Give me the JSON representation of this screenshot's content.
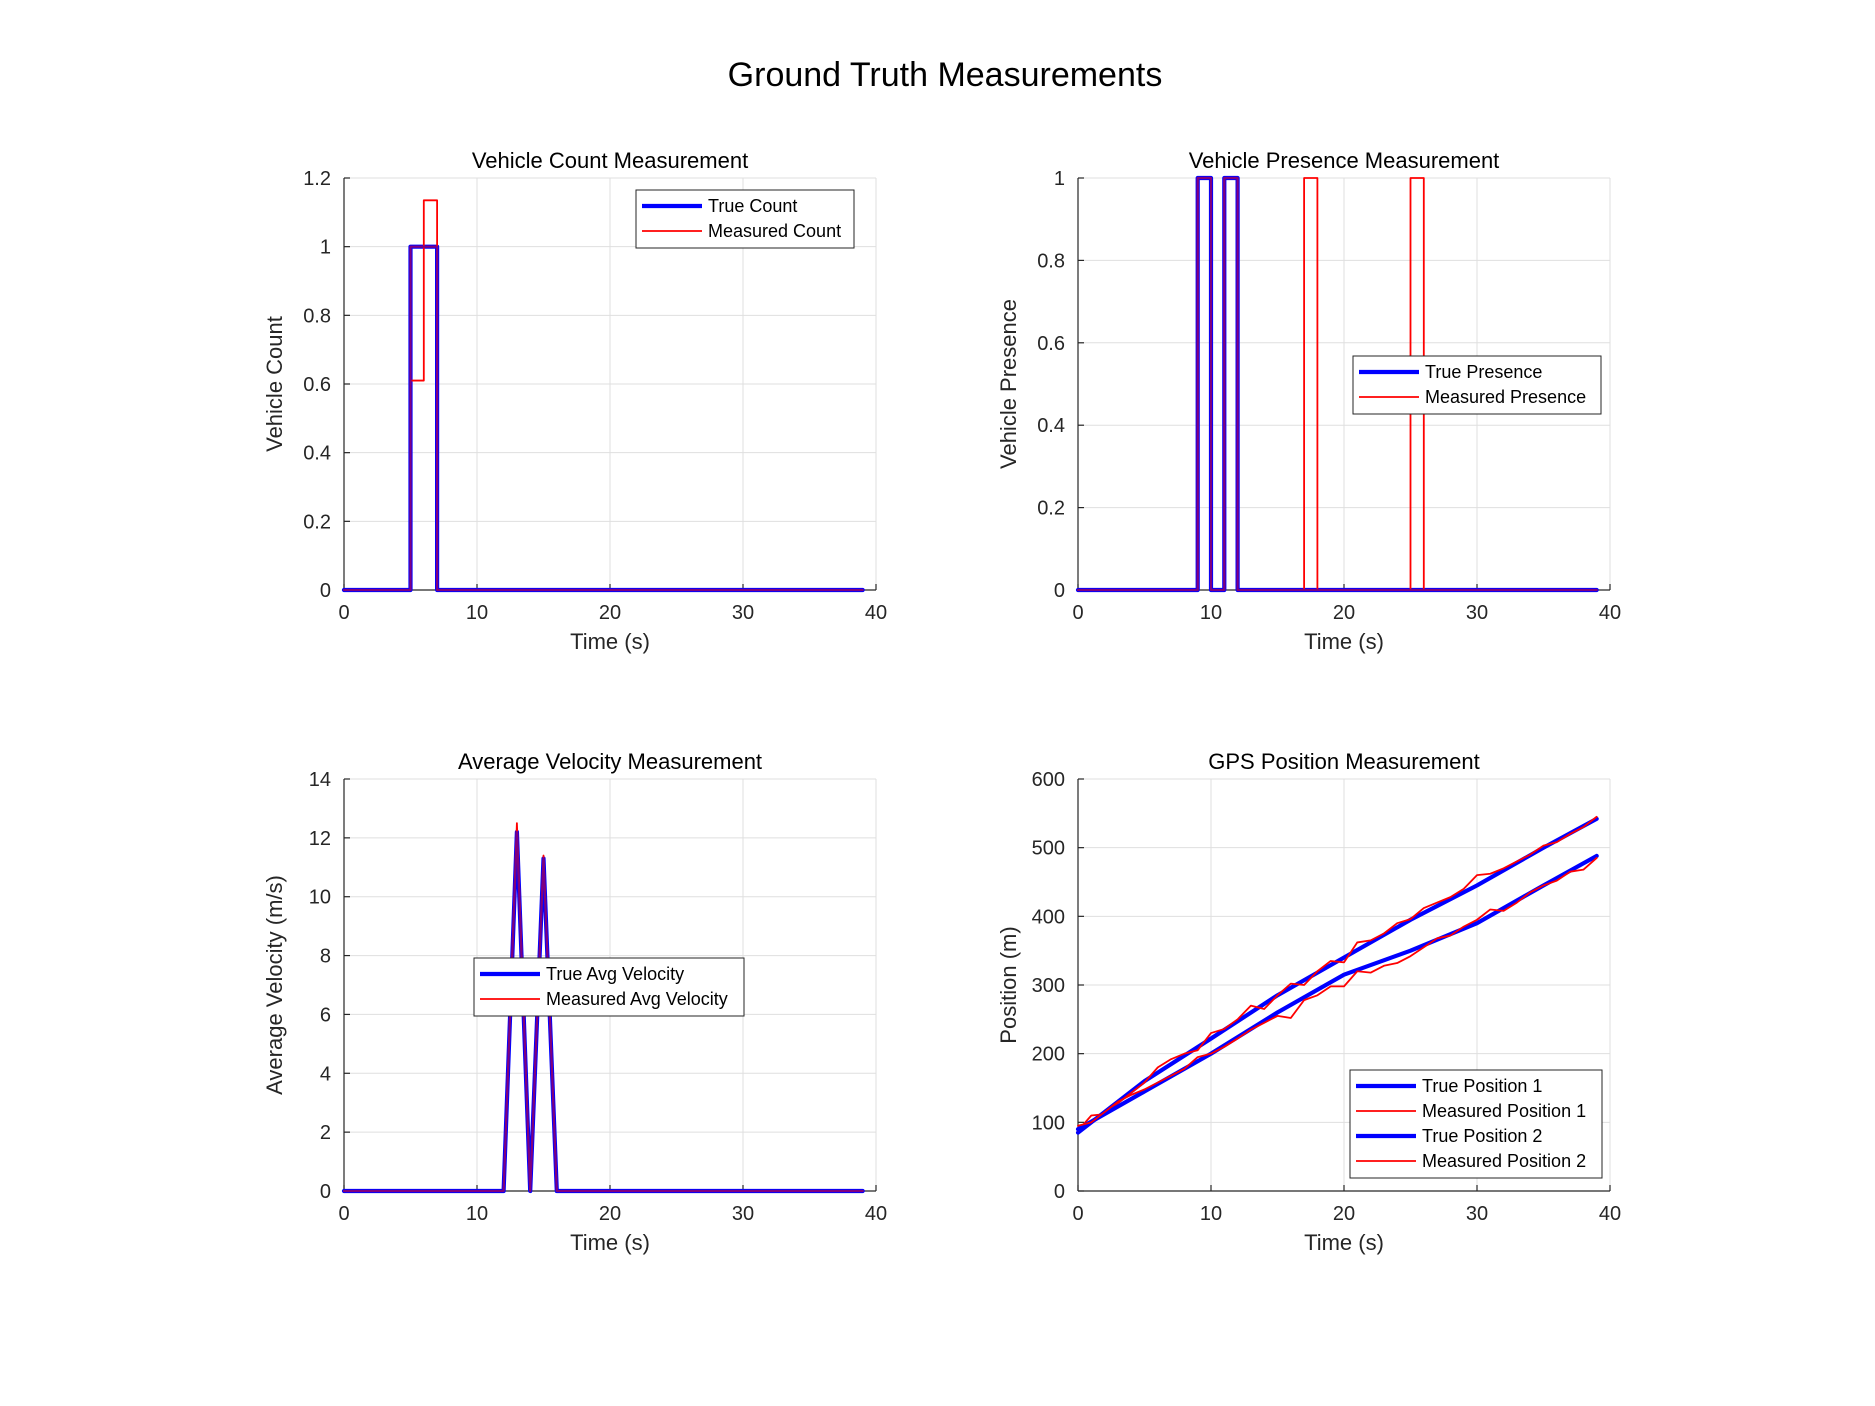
{
  "figure": {
    "title": "Ground Truth Measurements",
    "colors": {
      "true": "#0000ff",
      "measured": "#ff0000",
      "overlap": "#7f007f",
      "grid": "#dfdfdf",
      "axis": "#262626"
    }
  },
  "chart_data": [
    {
      "type": "line",
      "title": "Vehicle Count Measurement",
      "xlabel": "Time (s)",
      "ylabel": "Vehicle Count",
      "xlim": [
        0,
        40
      ],
      "ylim": [
        0,
        1.2
      ],
      "xticks": [
        0,
        10,
        20,
        30,
        40
      ],
      "yticks": [
        0,
        0.2,
        0.4,
        0.6,
        0.8,
        1,
        1.2
      ],
      "xtick_labels": [
        "0",
        "10",
        "20",
        "30",
        "40"
      ],
      "ytick_labels": [
        "0",
        "0.2",
        "0.4",
        "0.6",
        "0.8",
        "1",
        "1.2"
      ],
      "grid": true,
      "legend": "top-right",
      "series": [
        {
          "name": "True Count",
          "role": "true",
          "x": [
            0,
            5,
            5,
            7,
            7,
            39
          ],
          "y": [
            0,
            0,
            1,
            1,
            0,
            0
          ]
        },
        {
          "name": "Measured Count",
          "role": "measured",
          "x": [
            0,
            5,
            5,
            6,
            6,
            7,
            7,
            39
          ],
          "y": [
            0,
            0,
            0.61,
            0.61,
            1.135,
            1.135,
            0,
            0
          ]
        }
      ]
    },
    {
      "type": "line",
      "title": "Vehicle Presence Measurement",
      "xlabel": "Time (s)",
      "ylabel": "Vehicle Presence",
      "xlim": [
        0,
        40
      ],
      "ylim": [
        0,
        1
      ],
      "xticks": [
        0,
        10,
        20,
        30,
        40
      ],
      "yticks": [
        0,
        0.2,
        0.4,
        0.6,
        0.8,
        1
      ],
      "xtick_labels": [
        "0",
        "10",
        "20",
        "30",
        "40"
      ],
      "ytick_labels": [
        "0",
        "0.2",
        "0.4",
        "0.6",
        "0.8",
        "1"
      ],
      "grid": true,
      "legend": "center-right",
      "series": [
        {
          "name": "True Presence",
          "role": "true",
          "x": [
            0,
            9,
            9,
            10,
            10,
            11,
            11,
            12,
            12,
            39
          ],
          "y": [
            0,
            0,
            1,
            1,
            0,
            0,
            1,
            1,
            0,
            0
          ]
        },
        {
          "name": "Measured Presence",
          "role": "measured",
          "x": [
            0,
            9,
            9,
            10,
            10,
            11,
            11,
            12,
            12,
            17,
            17,
            18,
            18,
            25,
            25,
            26,
            26,
            39
          ],
          "y": [
            0,
            0,
            1,
            1,
            0,
            0,
            1,
            1,
            0,
            0,
            1,
            1,
            0,
            0,
            1,
            1,
            0,
            0
          ]
        }
      ]
    },
    {
      "type": "line",
      "title": "Average Velocity Measurement",
      "xlabel": "Time (s)",
      "ylabel": "Average Velocity (m/s)",
      "xlim": [
        0,
        40
      ],
      "ylim": [
        0,
        14
      ],
      "xticks": [
        0,
        10,
        20,
        30,
        40
      ],
      "yticks": [
        0,
        2,
        4,
        6,
        8,
        10,
        12,
        14
      ],
      "xtick_labels": [
        "0",
        "10",
        "20",
        "30",
        "40"
      ],
      "ytick_labels": [
        "0",
        "2",
        "4",
        "6",
        "8",
        "10",
        "12",
        "14"
      ],
      "grid": true,
      "legend": "center",
      "series": [
        {
          "name": "True Avg Velocity",
          "role": "true",
          "x": [
            0,
            12,
            13,
            14,
            15,
            16,
            39
          ],
          "y": [
            0,
            0,
            12.2,
            0,
            11.3,
            0,
            0
          ]
        },
        {
          "name": "Measured Avg Velocity",
          "role": "measured",
          "x": [
            0,
            12,
            13,
            14,
            15,
            16,
            39
          ],
          "y": [
            0,
            0,
            12.5,
            0,
            11.4,
            0,
            0
          ]
        }
      ]
    },
    {
      "type": "line",
      "title": "GPS Position Measurement",
      "xlabel": "Time (s)",
      "ylabel": "Position (m)",
      "xlim": [
        0,
        40
      ],
      "ylim": [
        0,
        600
      ],
      "xticks": [
        0,
        10,
        20,
        30,
        40
      ],
      "yticks": [
        0,
        100,
        200,
        300,
        400,
        500,
        600
      ],
      "xtick_labels": [
        "0",
        "10",
        "20",
        "30",
        "40"
      ],
      "ytick_labels": [
        "0",
        "100",
        "200",
        "300",
        "400",
        "500",
        "600"
      ],
      "grid": true,
      "legend": "bottom-right",
      "series": [
        {
          "name": "True Position 1",
          "role": "true",
          "x": [
            0,
            5,
            10,
            15,
            20,
            25,
            30,
            35,
            39
          ],
          "y": [
            85,
            160,
            222,
            285,
            340,
            395,
            445,
            500,
            542
          ]
        },
        {
          "name": "Measured Position 1",
          "role": "measured",
          "x": [
            0,
            1,
            2,
            3,
            4,
            5,
            6,
            7,
            8,
            9,
            10,
            11,
            12,
            13,
            14,
            15,
            16,
            17,
            18,
            19,
            20,
            21,
            22,
            23,
            24,
            25,
            26,
            27,
            28,
            29,
            30,
            31,
            32,
            33,
            34,
            35,
            36,
            37,
            38,
            39
          ],
          "y": [
            88,
            110,
            112,
            128,
            143,
            158,
            180,
            192,
            200,
            205,
            230,
            236,
            250,
            270,
            265,
            285,
            302,
            300,
            320,
            335,
            333,
            362,
            365,
            375,
            390,
            396,
            412,
            420,
            428,
            440,
            460,
            462,
            470,
            480,
            490,
            503,
            508,
            520,
            530,
            545
          ]
        },
        {
          "name": "True Position 2",
          "role": "true",
          "x": [
            0,
            5,
            10,
            15,
            20,
            25,
            30,
            35,
            39
          ],
          "y": [
            90,
            145,
            200,
            260,
            315,
            350,
            390,
            445,
            488
          ]
        },
        {
          "name": "Measured Position 2",
          "role": "measured",
          "x": [
            0,
            1,
            2,
            3,
            4,
            5,
            6,
            7,
            8,
            9,
            10,
            11,
            12,
            13,
            14,
            15,
            16,
            17,
            18,
            19,
            20,
            21,
            22,
            23,
            24,
            25,
            26,
            27,
            28,
            29,
            30,
            31,
            32,
            33,
            34,
            35,
            36,
            37,
            38,
            39
          ],
          "y": [
            95,
            100,
            115,
            130,
            140,
            148,
            158,
            168,
            178,
            195,
            200,
            210,
            222,
            235,
            245,
            255,
            252,
            278,
            285,
            298,
            298,
            320,
            318,
            328,
            332,
            342,
            355,
            368,
            372,
            385,
            395,
            410,
            408,
            420,
            435,
            445,
            452,
            465,
            468,
            485
          ]
        }
      ]
    }
  ]
}
